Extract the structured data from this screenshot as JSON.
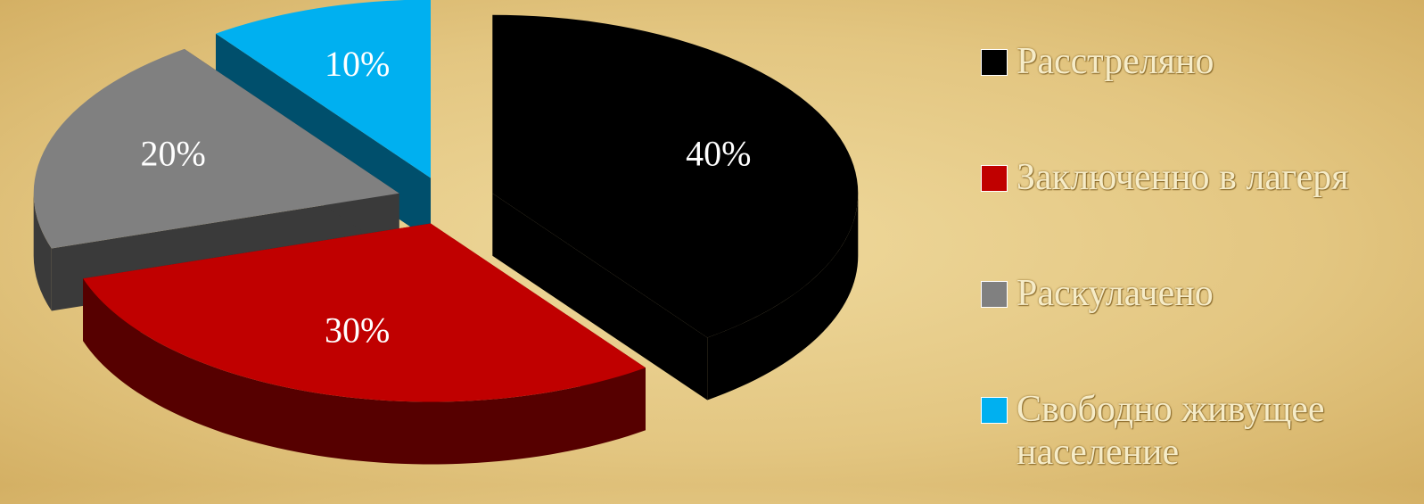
{
  "chart_data": {
    "type": "pie",
    "categories": [
      "Расстреляно",
      "Заключенно в лагеря",
      "Раскулачено",
      "Свободно живущее население"
    ],
    "values": [
      40,
      30,
      20,
      10
    ],
    "value_labels": [
      "40%",
      "30%",
      "20%",
      "10%"
    ],
    "colors": [
      "#000000",
      "#c00000",
      "#808080",
      "#00b0f0"
    ],
    "legend": "right"
  }
}
